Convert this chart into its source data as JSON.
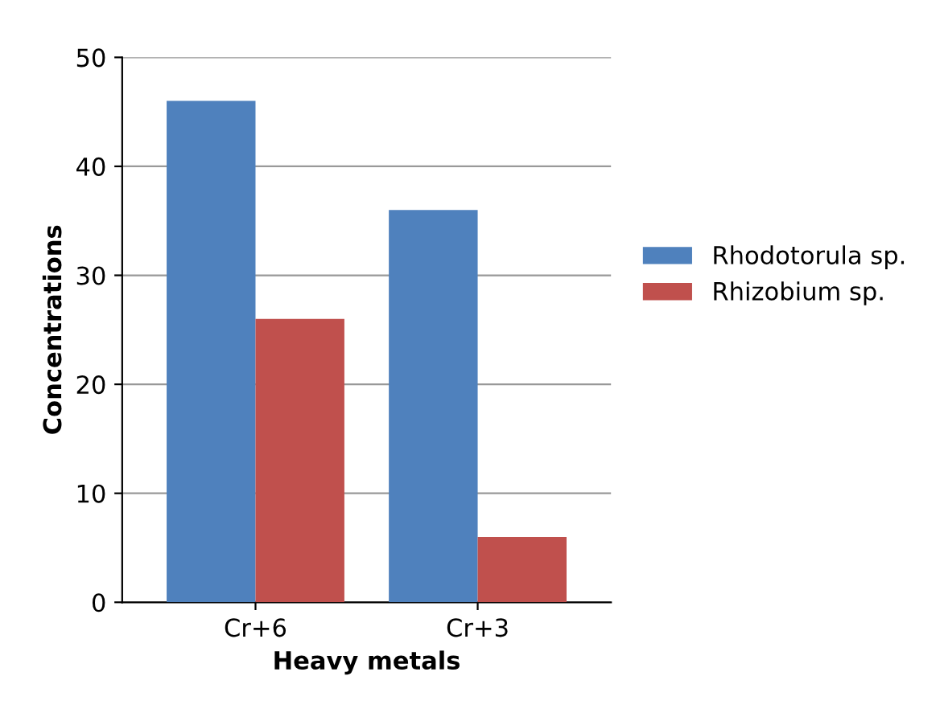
{
  "chart_data": {
    "type": "bar",
    "xlabel": "Heavy metals",
    "ylabel": "Concentrations",
    "categories": [
      "Cr+6",
      "Cr+3"
    ],
    "series": [
      {
        "name": "Rhodotorula sp.",
        "color": "#4f81bd",
        "values": [
          46,
          36
        ]
      },
      {
        "name": "Rhizobium sp.",
        "color": "#c0504d",
        "values": [
          26,
          6
        ]
      }
    ],
    "ylim": [
      0,
      50
    ],
    "yticks": [
      0,
      10,
      20,
      30,
      40,
      50
    ],
    "grid": "y",
    "legend": "right"
  }
}
